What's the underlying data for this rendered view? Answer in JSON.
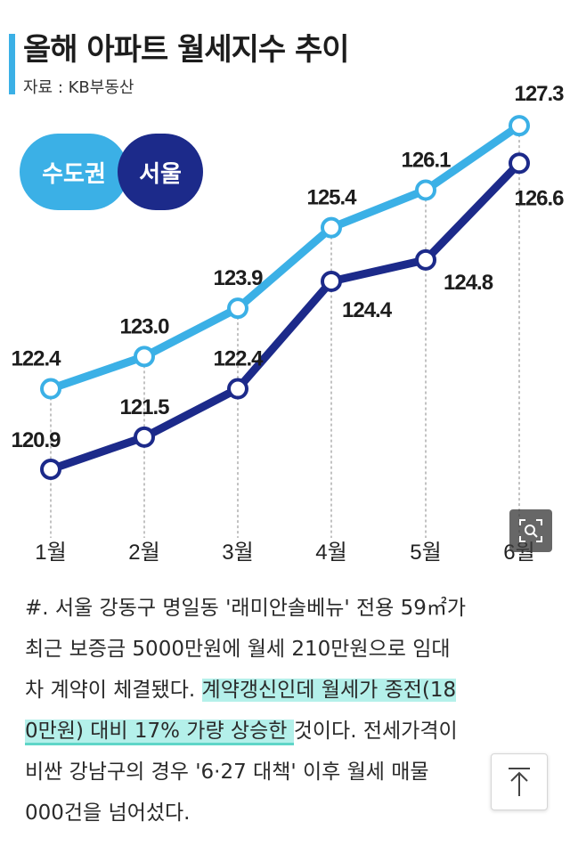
{
  "title": "올해 아파트 월세지수 추이",
  "source": "자료 : KB부동산",
  "legend": [
    {
      "label": "수도권",
      "color": "#3bb0e6"
    },
    {
      "label": "서울",
      "color": "#1c2a8a"
    }
  ],
  "chart_data": {
    "type": "line",
    "title": "올해 아파트 월세지수 추이",
    "categories": [
      "1월",
      "2월",
      "3월",
      "4월",
      "5월",
      "6월"
    ],
    "series": [
      {
        "name": "수도권",
        "color": "#3bb0e6",
        "values": [
          122.4,
          123.0,
          123.9,
          125.4,
          126.1,
          127.3
        ]
      },
      {
        "name": "서울",
        "color": "#1c2a8a",
        "values": [
          120.9,
          121.5,
          122.4,
          124.4,
          124.8,
          126.6
        ]
      }
    ],
    "xlabel": "",
    "ylabel": "",
    "ylim": [
      120.9,
      127.3
    ],
    "grid": false
  },
  "article": {
    "line1": "#. 서울 강동구 명일동 '래미안솔베뉴' 전용 59㎡가",
    "line2": "최근 보증금 5000만원에 월세 210만원으로 임대",
    "line3_plain": "차 계약이 체결됐다. ",
    "line3_hl": "계약갱신인데 월세가 종전(18",
    "line4_hl": "0만원) 대비 17% 가량 상승한 ",
    "line4_plain": "것이다. 전세가격이",
    "line5": "비싼 강남구의 경우 '6·27 대책' 이후 월세 매물",
    "line6": "000건을 넘어섰다."
  },
  "icons": {
    "zoom": "zoom-icon",
    "scroll_top": "arrow-up-icon"
  }
}
